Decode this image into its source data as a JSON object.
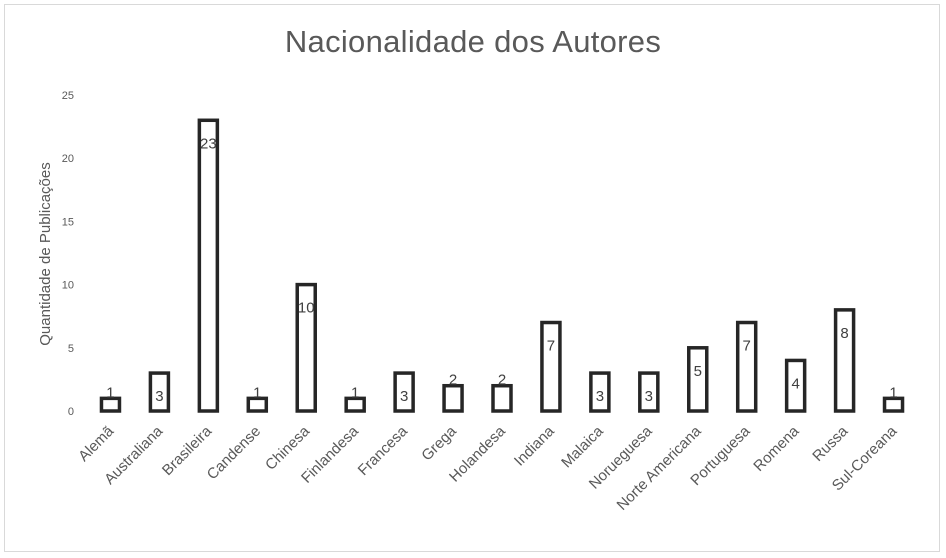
{
  "chart_data": {
    "type": "bar",
    "title": "Nacionalidade dos Autores",
    "xlabel": "",
    "ylabel": "Quantidade de Publicações",
    "ylim": [
      0,
      25
    ],
    "yticks": [
      0,
      5,
      10,
      15,
      20,
      25
    ],
    "grid": false,
    "legend": "none",
    "categories": [
      "Alemã",
      "Australiana",
      "Brasileira",
      "Candense",
      "Chinesa",
      "Finlandesa",
      "Francesa",
      "Grega",
      "Holandesa",
      "Indiana",
      "Malaica",
      "Norueguesa",
      "Norte Americana",
      "Portuguesa",
      "Romena",
      "Russa",
      "Sul-Coreana"
    ],
    "values": [
      1,
      3,
      23,
      1,
      10,
      1,
      3,
      2,
      2,
      7,
      3,
      3,
      5,
      7,
      4,
      8,
      1
    ],
    "colors": {
      "bar_fill": "#ffffff",
      "bar_stroke": "#262626",
      "text": "#595959"
    }
  }
}
